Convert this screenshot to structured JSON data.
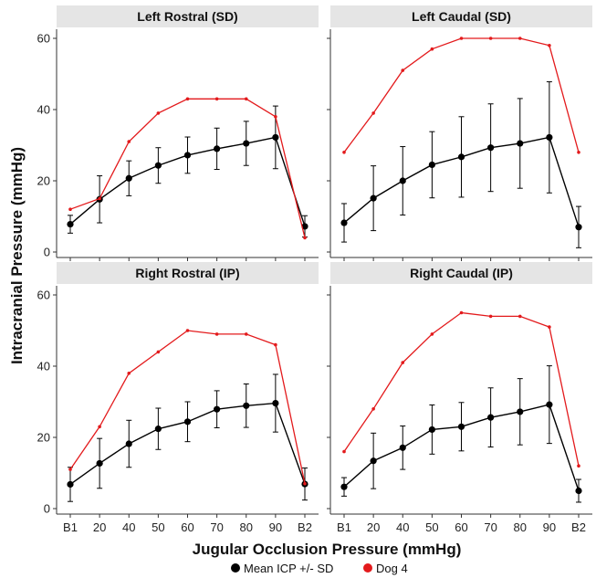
{
  "chart_data": {
    "type": "line",
    "categories": [
      "B1",
      "20",
      "40",
      "50",
      "60",
      "70",
      "80",
      "90",
      "B2"
    ],
    "xlabel": "Jugular Occlusion Pressure (mmHg)",
    "ylabel": "Intracranial Pressure (mmHg)",
    "ylim": [
      0,
      62
    ],
    "yticks": [
      0,
      20,
      40,
      60
    ],
    "grid": false,
    "legend_position": "bottom",
    "legend": [
      {
        "label": "Mean ICP +/- SD",
        "color": "#000000"
      },
      {
        "label": "Dog 4",
        "color": "#e31a1c"
      }
    ],
    "panels": [
      {
        "title": "Left Rostral (SD)",
        "series": [
          {
            "name": "Mean ICP +/- SD",
            "color": "#000000",
            "values": [
              7.8,
              14.8,
              20.7,
              24.3,
              27.2,
              29.0,
              30.5,
              32.2,
              7.2
            ],
            "sd": [
              2.5,
              6.6,
              4.9,
              5.0,
              5.1,
              5.8,
              6.2,
              8.8,
              3.0
            ]
          },
          {
            "name": "Dog 4",
            "color": "#e31a1c",
            "values": [
              12,
              15,
              31,
              39,
              43,
              43,
              43,
              38,
              4
            ]
          }
        ]
      },
      {
        "title": "Left Caudal (SD)",
        "series": [
          {
            "name": "Mean ICP +/- SD",
            "color": "#000000",
            "values": [
              8.2,
              15.1,
              20.0,
              24.5,
              26.7,
              29.3,
              30.5,
              32.2,
              7.0
            ],
            "sd": [
              5.4,
              9.1,
              9.6,
              9.3,
              11.3,
              12.3,
              12.6,
              15.6,
              5.8
            ]
          },
          {
            "name": "Dog 4",
            "color": "#e31a1c",
            "values": [
              28,
              39,
              51,
              57,
              60,
              60,
              60,
              58,
              28
            ]
          }
        ]
      },
      {
        "title": "Right Rostral (IP)",
        "series": [
          {
            "name": "Mean ICP +/- SD",
            "color": "#000000",
            "values": [
              6.8,
              12.7,
              18.2,
              22.4,
              24.4,
              27.9,
              28.9,
              29.6,
              6.9
            ],
            "sd": [
              4.8,
              7.0,
              6.6,
              5.8,
              5.6,
              5.2,
              6.1,
              8.1,
              4.5
            ]
          },
          {
            "name": "Dog 4",
            "color": "#e31a1c",
            "values": [
              11,
              23,
              38,
              44,
              50,
              49,
              49,
              46,
              7
            ]
          }
        ]
      },
      {
        "title": "Right Caudal (IP)",
        "series": [
          {
            "name": "Mean ICP +/- SD",
            "color": "#000000",
            "values": [
              6.1,
              13.4,
              17.1,
              22.2,
              23.0,
              25.6,
              27.2,
              29.2,
              5.0
            ],
            "sd": [
              2.6,
              7.8,
              6.1,
              6.9,
              6.8,
              8.3,
              9.3,
              10.9,
              3.2
            ]
          },
          {
            "name": "Dog 4",
            "color": "#e31a1c",
            "values": [
              16,
              28,
              41,
              49,
              55,
              54,
              54,
              51,
              12
            ]
          }
        ]
      }
    ]
  }
}
